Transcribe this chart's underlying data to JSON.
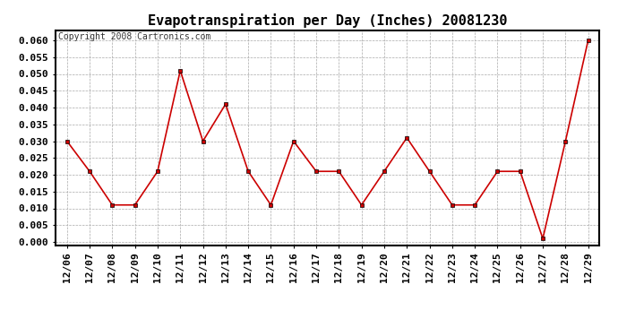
{
  "title": "Evapotranspiration per Day (Inches) 20081230",
  "copyright_text": "Copyright 2008 Cartronics.com",
  "x_labels": [
    "12/06",
    "12/07",
    "12/08",
    "12/09",
    "12/10",
    "12/11",
    "12/12",
    "12/13",
    "12/14",
    "12/15",
    "12/16",
    "12/17",
    "12/18",
    "12/19",
    "12/20",
    "12/21",
    "12/22",
    "12/23",
    "12/24",
    "12/25",
    "12/26",
    "12/27",
    "12/28",
    "12/29"
  ],
  "y_values": [
    0.03,
    0.021,
    0.011,
    0.011,
    0.021,
    0.051,
    0.03,
    0.041,
    0.021,
    0.011,
    0.03,
    0.021,
    0.021,
    0.011,
    0.021,
    0.031,
    0.021,
    0.011,
    0.011,
    0.021,
    0.021,
    0.001,
    0.03,
    0.06
  ],
  "line_color": "#cc0000",
  "marker": "s",
  "marker_size": 3,
  "background_color": "#ffffff",
  "grid_color": "#aaaaaa",
  "ylim": [
    -0.001,
    0.063
  ],
  "ytick_min": 0.0,
  "ytick_max": 0.06,
  "ytick_step": 0.005,
  "title_fontsize": 11,
  "copyright_fontsize": 7,
  "tick_fontsize": 8
}
